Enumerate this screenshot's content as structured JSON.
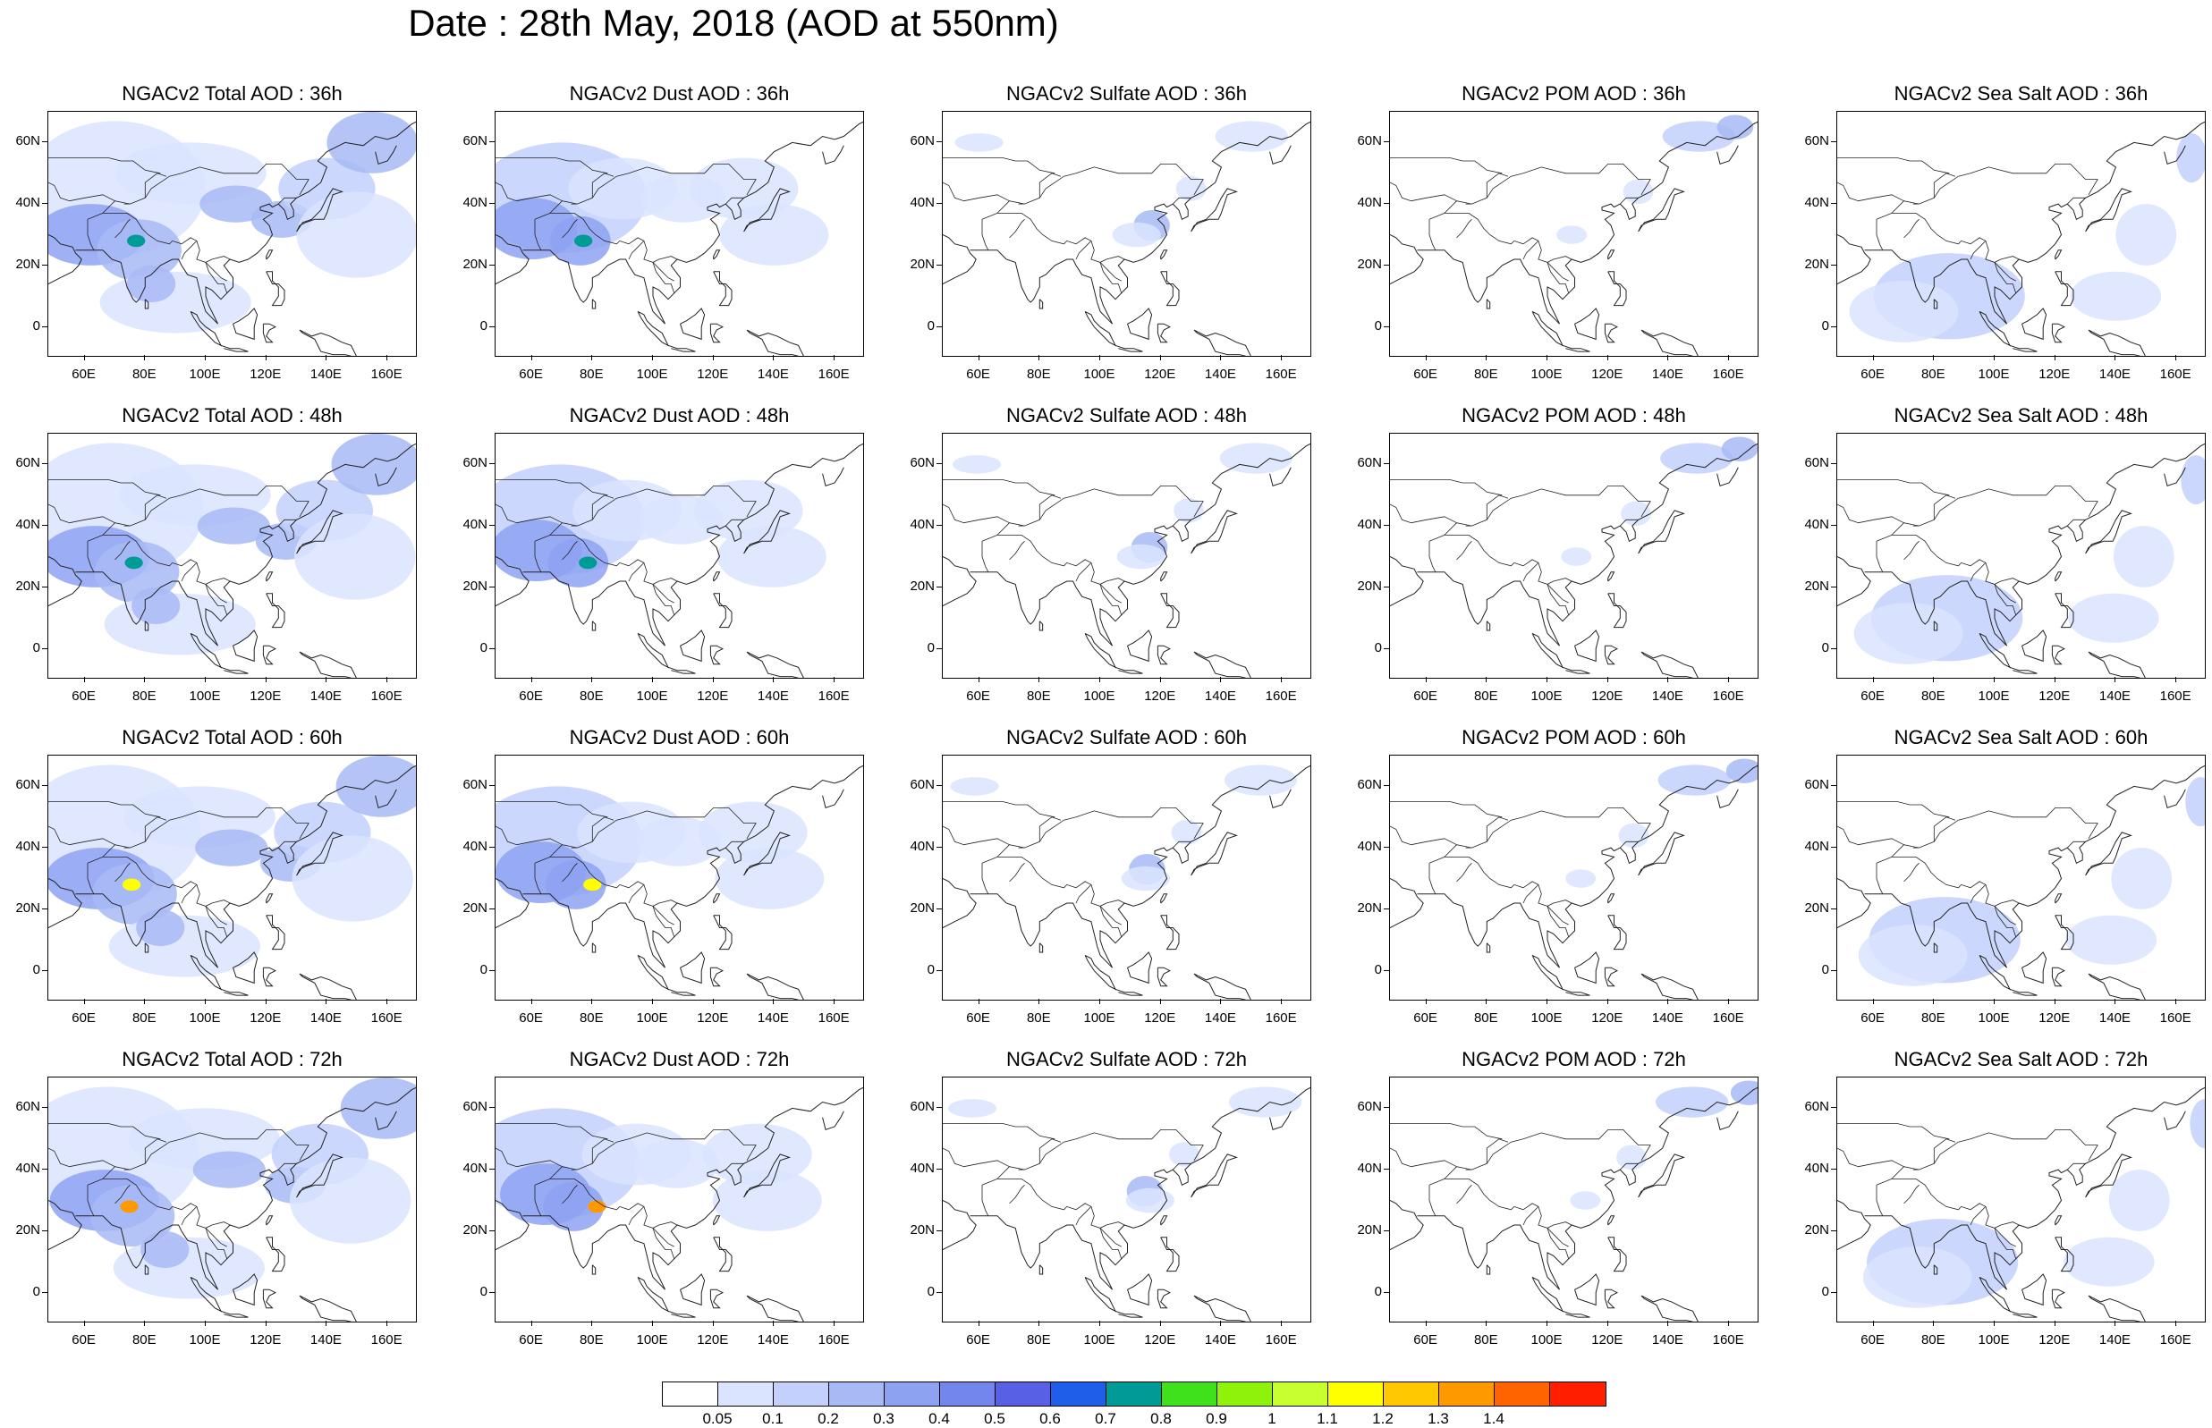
{
  "title": "Date : 28th May, 2018 (AOD at 550nm)",
  "panel_titles": [
    [
      "NGACv2 Total AOD : 36h",
      "NGACv2 Dust AOD : 36h",
      "NGACv2 Sulfate AOD : 36h",
      "NGACv2 POM AOD : 36h",
      "NGACv2 Sea Salt AOD : 36h"
    ],
    [
      "NGACv2 Total AOD : 48h",
      "NGACv2 Dust AOD : 48h",
      "NGACv2 Sulfate AOD : 48h",
      "NGACv2 POM AOD : 48h",
      "NGACv2 Sea Salt AOD : 48h"
    ],
    [
      "NGACv2 Total AOD : 60h",
      "NGACv2 Dust AOD : 60h",
      "NGACv2 Sulfate AOD : 60h",
      "NGACv2 POM AOD : 60h",
      "NGACv2 Sea Salt AOD : 60h"
    ],
    [
      "NGACv2 Total AOD : 72h",
      "NGACv2 Dust AOD : 72h",
      "NGACv2 Sulfate AOD : 72h",
      "NGACv2 POM AOD : 72h",
      "NGACv2 Sea Salt  AOD : 72h"
    ]
  ],
  "lat_ticks": [
    "60N",
    "40N",
    "20N",
    "0"
  ],
  "lat_values": [
    60,
    40,
    20,
    0
  ],
  "lon_ticks": [
    "60E",
    "80E",
    "100E",
    "120E",
    "140E",
    "160E"
  ],
  "lon_values": [
    60,
    80,
    100,
    120,
    140,
    160
  ],
  "map_extent": {
    "lon": [
      48,
      170
    ],
    "lat": [
      -10,
      70
    ]
  },
  "colorbar": {
    "levels": [
      "0.05",
      "0.1",
      "0.2",
      "0.3",
      "0.4",
      "0.5",
      "0.6",
      "0.7",
      "0.8",
      "0.9",
      "1",
      "1.1",
      "1.2",
      "1.3",
      "1.4"
    ],
    "colors": [
      "#ffffff",
      "#dbe4ff",
      "#c2d0fb",
      "#a8baf6",
      "#8ea2f2",
      "#7386ee",
      "#5860e6",
      "#1f5ee8",
      "#009b94",
      "#3fe11c",
      "#8ef20a",
      "#c8ff2e",
      "#ffff00",
      "#ffc800",
      "#ff9900",
      "#ff6400",
      "#ff1e00"
    ]
  },
  "species_palette": {
    "total": "#8ea2f2",
    "dust": "#a8baf6",
    "sulfate": "#a8baf6",
    "pom": "#a8baf6",
    "seasalt": "#c2d0fb"
  }
}
